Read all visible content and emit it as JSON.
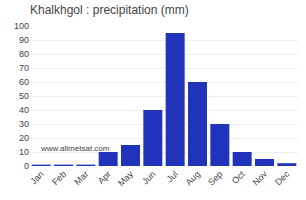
{
  "chart_data": {
    "type": "bar",
    "title": "Khalkhgol : precipitation (mm)",
    "categories": [
      "Jan",
      "Feb",
      "Mar",
      "Apr",
      "May",
      "Jun",
      "Jul",
      "Aug",
      "Sep",
      "Oct",
      "Nov",
      "Dec"
    ],
    "values": [
      1,
      1,
      1,
      10,
      15,
      40,
      95,
      60,
      30,
      10,
      5,
      2
    ],
    "color": "#2233bb",
    "ylim": [
      0,
      100
    ],
    "yticks": [
      0,
      10,
      20,
      30,
      40,
      50,
      60,
      70,
      80,
      90,
      100
    ],
    "grid": true,
    "annotations": [
      "www.allmetsat.com"
    ]
  }
}
